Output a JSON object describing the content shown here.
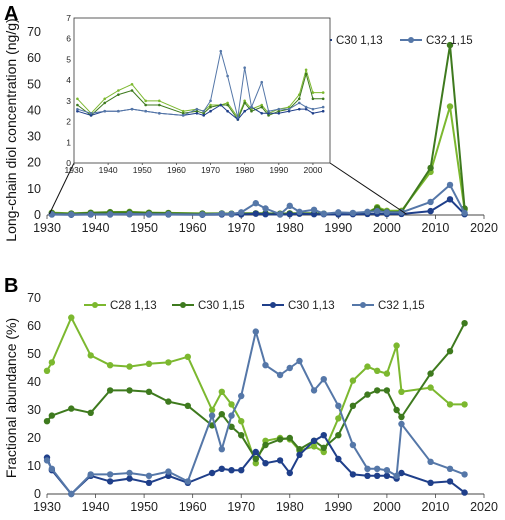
{
  "panels": [
    {
      "label": "A",
      "ylabel": "Long-chain diol concentration (ng/g)"
    },
    {
      "label": "B",
      "ylabel": "Fractional abundance (%)"
    }
  ],
  "colors": {
    "C28 1,13": "#7cb82f",
    "C30 1,15": "#3e7a1e",
    "C30 1,13": "#1f3f8a",
    "C32 1,15": "#5577a8"
  },
  "chart_data": [
    {
      "id": "A-main",
      "type": "line",
      "ylabel": "Long-chain diol concentration (ng/g)",
      "xlim": [
        1930,
        2020
      ],
      "ylim": [
        0,
        70
      ],
      "xticks": [
        1930,
        1940,
        1950,
        1960,
        1970,
        1980,
        1990,
        2000,
        2010,
        2020
      ],
      "yticks": [
        0,
        10,
        20,
        30,
        40,
        50,
        60,
        70
      ],
      "x": [
        1931,
        1935,
        1939,
        1943,
        1947,
        1951,
        1955,
        1962,
        1966,
        1968,
        1970,
        1973,
        1975,
        1978,
        1980,
        1982,
        1985,
        1987,
        1990,
        1993,
        1996,
        1998,
        2000,
        2003,
        2009,
        2013,
        2016
      ],
      "series": [
        {
          "name": "C28 1,13",
          "values": [
            0.9,
            0.6,
            0.9,
            1.1,
            1.2,
            0.9,
            0.8,
            0.6,
            0.6,
            0.5,
            0.6,
            0.6,
            0.6,
            0.5,
            0.6,
            0.6,
            0.6,
            0.5,
            0.6,
            0.6,
            1.0,
            3.0,
            1.6,
            1.6,
            16.5,
            41.5,
            2.0
          ]
        },
        {
          "name": "C30 1,15",
          "values": [
            0.7,
            0.5,
            0.8,
            1.0,
            1.0,
            0.8,
            0.7,
            0.5,
            0.6,
            0.5,
            0.6,
            0.6,
            0.6,
            0.5,
            0.6,
            0.6,
            0.6,
            0.5,
            0.6,
            0.6,
            0.9,
            2.6,
            1.2,
            1.2,
            18.0,
            65.0,
            2.5
          ]
        },
        {
          "name": "C30 1,13",
          "values": [
            0.2,
            0.1,
            0.2,
            0.2,
            0.3,
            0.2,
            0.2,
            0.1,
            0.2,
            0.3,
            0.2,
            0.5,
            0.3,
            0.2,
            0.3,
            0.5,
            0.3,
            0.3,
            0.2,
            0.3,
            0.4,
            0.5,
            0.4,
            0.4,
            1.5,
            6.0,
            0.3
          ]
        },
        {
          "name": "C32 1,15",
          "values": [
            0.3,
            0.2,
            0.3,
            0.3,
            0.4,
            0.3,
            0.3,
            0.2,
            0.5,
            0.4,
            1.0,
            4.5,
            2.5,
            0.3,
            3.5,
            1.2,
            2.0,
            0.5,
            1.0,
            0.8,
            1.2,
            1.5,
            1.0,
            1.0,
            5.0,
            11.5,
            0.8
          ]
        }
      ]
    },
    {
      "id": "A-inset",
      "type": "line",
      "xlim": [
        1930,
        2005
      ],
      "ylim": [
        0,
        7
      ],
      "xticks": [
        1930,
        1940,
        1950,
        1960,
        1970,
        1980,
        1990,
        2000
      ],
      "yticks": [
        0,
        1,
        2,
        3,
        4,
        5,
        6,
        7
      ],
      "x": [
        1931,
        1935,
        1939,
        1943,
        1947,
        1951,
        1955,
        1962,
        1966,
        1968,
        1970,
        1973,
        1975,
        1978,
        1980,
        1982,
        1985,
        1987,
        1990,
        1993,
        1996,
        1998,
        2000,
        2003
      ],
      "series": [
        {
          "name": "C28 1,13",
          "values": [
            3.1,
            2.4,
            3.1,
            3.5,
            3.8,
            3.0,
            3.0,
            2.5,
            2.6,
            2.5,
            2.8,
            2.8,
            2.9,
            2.2,
            3.0,
            2.6,
            2.8,
            2.4,
            2.6,
            2.7,
            3.3,
            4.5,
            3.4,
            3.4
          ]
        },
        {
          "name": "C30 1,15",
          "values": [
            2.8,
            2.3,
            2.9,
            3.3,
            3.5,
            2.8,
            2.8,
            2.4,
            2.5,
            2.4,
            2.7,
            2.8,
            2.8,
            2.1,
            2.9,
            2.5,
            2.7,
            2.3,
            2.5,
            2.6,
            3.1,
            4.3,
            3.1,
            3.1
          ]
        },
        {
          "name": "C30 1,13",
          "values": [
            2.5,
            2.3,
            2.5,
            2.5,
            2.6,
            2.5,
            2.4,
            2.3,
            2.4,
            2.3,
            2.5,
            2.8,
            2.5,
            2.1,
            2.5,
            2.7,
            2.4,
            2.4,
            2.4,
            2.5,
            2.6,
            2.6,
            2.4,
            2.5
          ]
        },
        {
          "name": "C32 1,15",
          "values": [
            2.6,
            2.4,
            2.5,
            2.5,
            2.6,
            2.5,
            2.4,
            2.3,
            2.6,
            2.5,
            3.0,
            5.4,
            4.2,
            2.2,
            4.6,
            2.7,
            3.9,
            2.5,
            2.6,
            2.6,
            2.9,
            2.7,
            2.6,
            2.7
          ]
        }
      ]
    },
    {
      "id": "B",
      "type": "line",
      "ylabel": "Fractional abundance (%)",
      "xlim": [
        1930,
        2020
      ],
      "ylim": [
        0,
        70
      ],
      "xticks": [
        1930,
        1940,
        1950,
        1960,
        1970,
        1980,
        1990,
        2000,
        2010,
        2020
      ],
      "yticks": [
        0,
        10,
        20,
        30,
        40,
        50,
        60,
        70
      ],
      "x": [
        1930,
        1931,
        1935,
        1939,
        1943,
        1947,
        1951,
        1955,
        1959,
        1964,
        1966,
        1968,
        1970,
        1973,
        1975,
        1978,
        1980,
        1982,
        1985,
        1987,
        1990,
        1993,
        1996,
        1998,
        2000,
        2002,
        2003,
        2009,
        2013,
        2016
      ],
      "series": [
        {
          "name": "C28 1,13",
          "values": [
            44,
            47,
            63,
            49.5,
            46,
            45.5,
            46.5,
            47,
            49,
            30,
            36.5,
            32,
            26,
            11,
            19,
            20,
            19.5,
            15.5,
            17,
            15,
            27,
            40.5,
            45.5,
            44,
            43,
            53,
            36.5,
            38,
            32,
            32
          ]
        },
        {
          "name": "C30 1,15",
          "values": [
            26,
            28,
            30.5,
            29,
            37,
            37,
            36.5,
            33,
            31.5,
            24.5,
            28.5,
            24,
            21,
            12.5,
            17.5,
            19.5,
            20,
            16,
            19,
            16.5,
            21,
            31.5,
            35.5,
            37,
            37,
            30,
            27.5,
            43,
            51,
            61
          ]
        },
        {
          "name": "C30 1,13",
          "values": [
            13,
            8.5,
            0,
            6.5,
            4.5,
            5.5,
            4,
            6.5,
            4,
            7.5,
            9,
            8.5,
            8.5,
            15,
            11,
            12,
            7.5,
            14,
            19,
            21,
            12.5,
            7,
            6.5,
            6.5,
            6.5,
            5.5,
            7.5,
            4,
            4.5,
            0.5
          ]
        },
        {
          "name": "C32 1,15",
          "values": [
            12,
            9,
            0,
            7,
            7,
            7.5,
            6.5,
            8,
            4.5,
            28,
            16,
            28,
            35,
            58,
            46,
            42.5,
            45,
            47.5,
            37,
            41,
            31.5,
            17.5,
            9,
            9,
            8.5,
            6.5,
            25,
            11.5,
            9,
            7
          ]
        }
      ]
    }
  ]
}
